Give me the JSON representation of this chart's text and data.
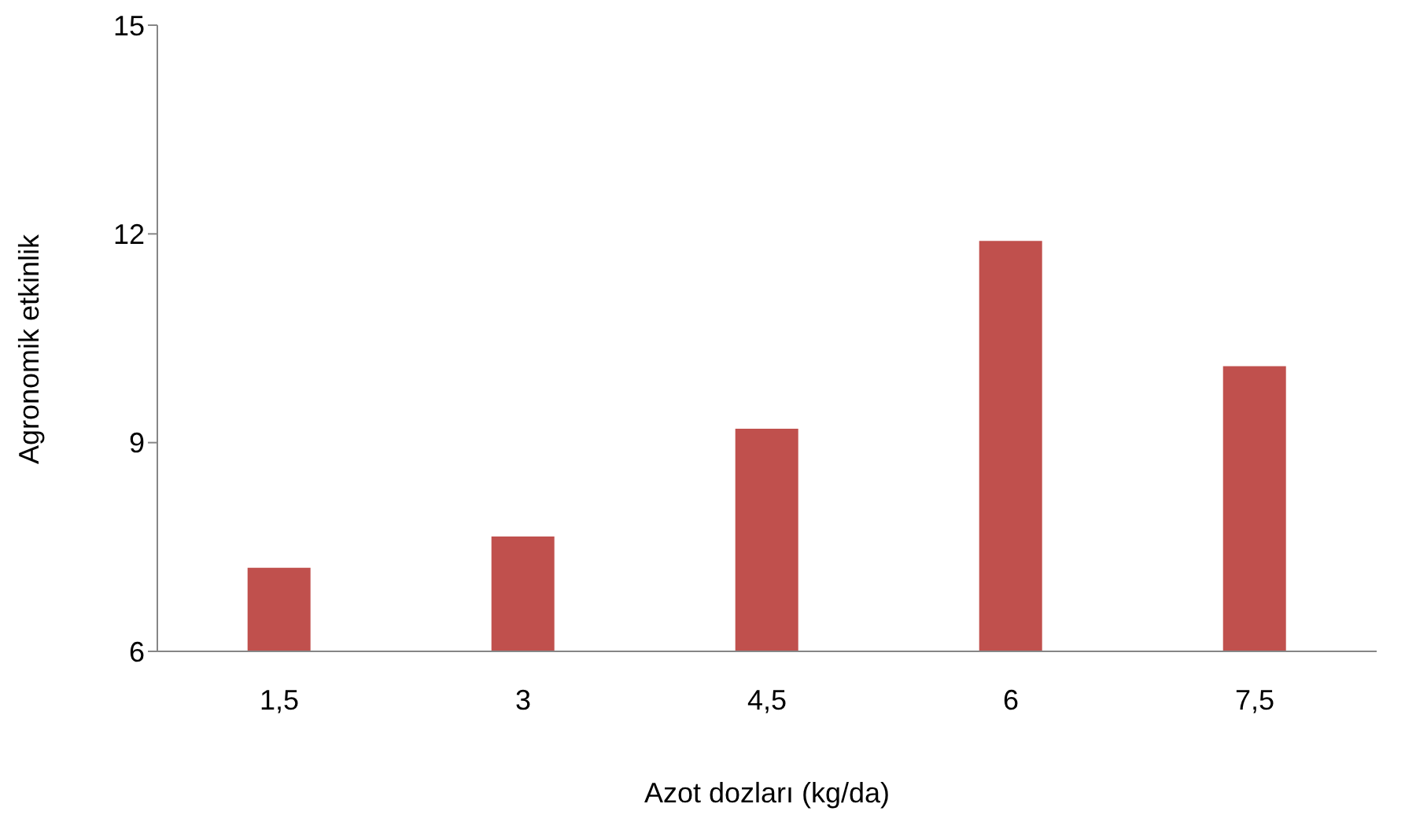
{
  "chart_data": {
    "type": "bar",
    "xlabel": "Azot dozları (kg/da)",
    "ylabel": "Agronomik etkinlik",
    "categories": [
      "1,5",
      "3",
      "4,5",
      "6",
      "7,5"
    ],
    "values": [
      7.2,
      7.65,
      9.2,
      11.9,
      10.1
    ],
    "color": "#c0504d",
    "ylim": [
      6,
      15
    ],
    "yticks": [
      6,
      9,
      12,
      15
    ],
    "grid": false,
    "legend": false
  }
}
